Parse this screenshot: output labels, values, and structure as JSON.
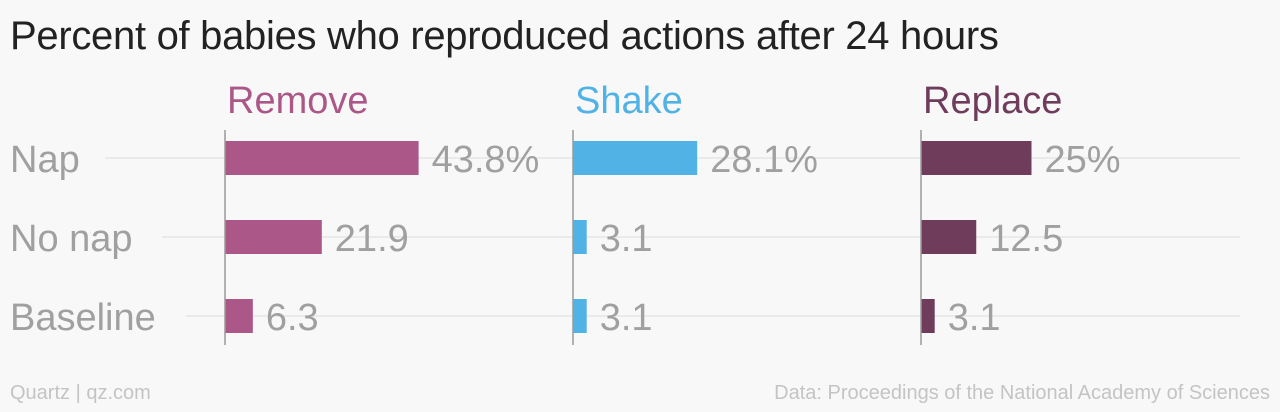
{
  "title": "Percent of babies who reproduced actions after 24 hours",
  "footer": {
    "source_left": "Quartz | qz.com",
    "source_right": "Data: Proceedings of the National Academy of Sciences"
  },
  "colors": {
    "background": "#f8f8f8",
    "gridline": "#e6e6e6",
    "axis": "#999999",
    "label": "#a0a0a0",
    "title": "#222222",
    "footer": "#c4c4c4"
  },
  "chart_data": {
    "type": "bar",
    "orientation": "horizontal",
    "layout": "small-multiples",
    "categories": [
      "Nap",
      "No nap",
      "Baseline"
    ],
    "series": [
      {
        "name": "Remove",
        "color": "#ab5787",
        "values": [
          43.8,
          21.9,
          6.3
        ],
        "labels": [
          "43.8%",
          "21.9",
          "6.3"
        ]
      },
      {
        "name": "Shake",
        "color": "#51b2e5",
        "values": [
          28.1,
          3.1,
          3.1
        ],
        "labels": [
          "28.1%",
          "3.1",
          "3.1"
        ]
      },
      {
        "name": "Replace",
        "color": "#703c5c",
        "values": [
          25,
          12.5,
          3.1
        ],
        "labels": [
          "25%",
          "12.5",
          "3.1"
        ]
      }
    ],
    "xlim": [
      0,
      100
    ],
    "grid": true,
    "legend": "none"
  }
}
